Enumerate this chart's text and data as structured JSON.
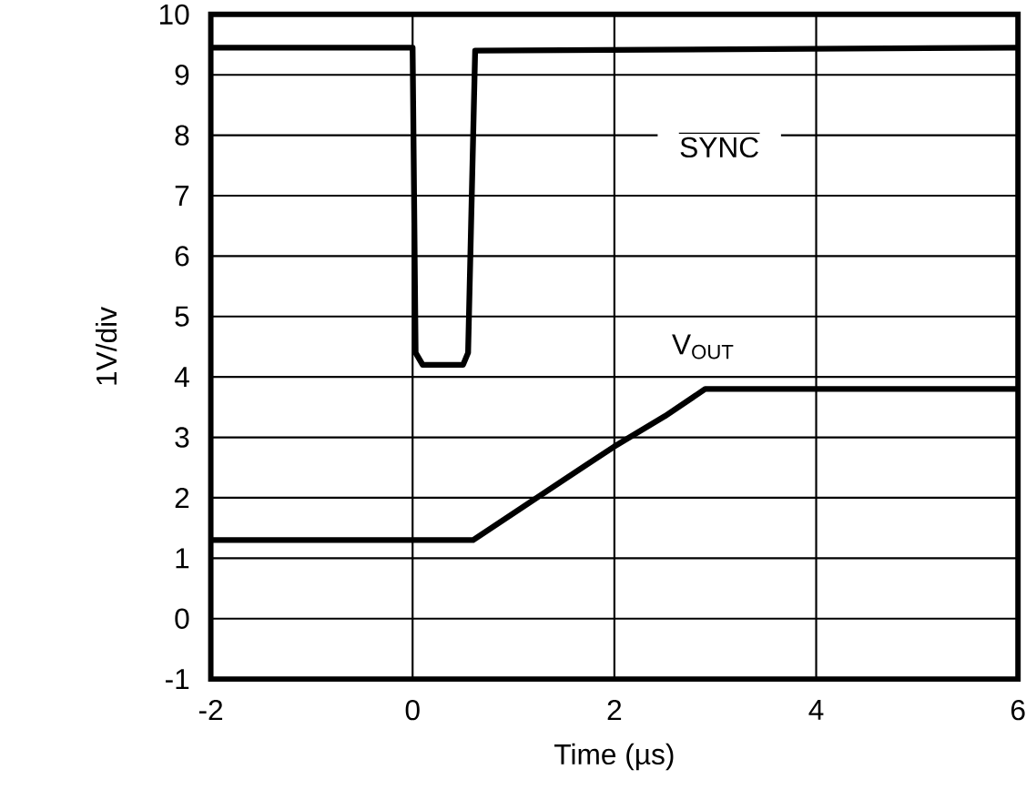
{
  "chart_data": {
    "type": "line",
    "xlabel": "Time (µs)",
    "ylabel": "1V/div",
    "xlim": [
      -2,
      6
    ],
    "ylim": [
      -1,
      10
    ],
    "xticks": [
      -2,
      0,
      2,
      4,
      6
    ],
    "yticks": [
      -1,
      0,
      1,
      2,
      3,
      4,
      5,
      6,
      7,
      8,
      9,
      10
    ],
    "grid": true,
    "marker": "none",
    "line_style": "solid",
    "series": [
      {
        "name": "SYNC",
        "color": "#000000",
        "x": [
          -2,
          0,
          0.03,
          0.1,
          0.5,
          0.55,
          0.62,
          6
        ],
        "values": [
          9.45,
          9.45,
          4.4,
          4.2,
          4.2,
          4.4,
          9.4,
          9.45
        ]
      },
      {
        "name": "V$_{OUT}$",
        "color": "#000000",
        "x": [
          -2,
          0.6,
          1.5,
          2,
          2.5,
          2.9,
          6
        ],
        "values": [
          1.3,
          1.3,
          2.3,
          2.85,
          3.35,
          3.8,
          3.8
        ]
      }
    ]
  }
}
